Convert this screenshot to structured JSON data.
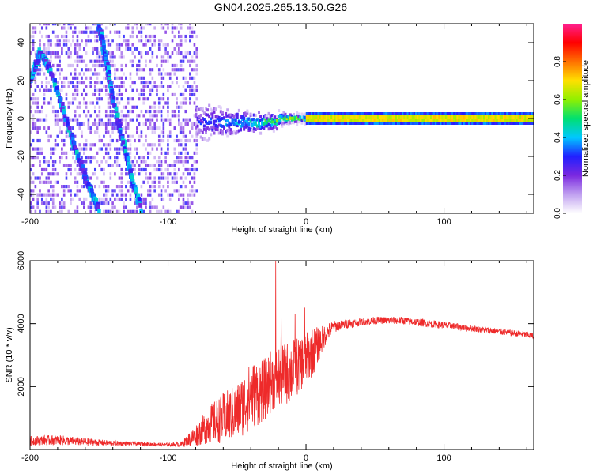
{
  "title": "GN04.2025.265.13.50.G26",
  "chart_data": [
    {
      "type": "heatmap",
      "title": "GN04.2025.265.13.50.G26",
      "xlabel": "Height of straight line (km)",
      "ylabel": "Frequency (Hz)",
      "xlim": [
        -200,
        165
      ],
      "ylim": [
        -50,
        50
      ],
      "xticks": [
        -200,
        -100,
        0,
        100
      ],
      "xtick_labels": [
        "-200",
        "-100",
        "0",
        "100"
      ],
      "yticks": [
        -40,
        -20,
        0,
        20,
        40
      ],
      "ytick_labels": [
        "-40",
        "-20",
        "0",
        "20",
        "40"
      ],
      "colorbar": {
        "label": "Normalized spectral amplitude",
        "range": [
          0,
          1
        ],
        "ticks": [
          0.0,
          0.2,
          0.4,
          0.6,
          0.8
        ],
        "tick_labels": [
          "0.0",
          "0.2",
          "0.4",
          "0.6",
          "0.8"
        ],
        "colors": [
          "#ffffff",
          "#c0a0f0",
          "#7b28e0",
          "#2020ff",
          "#00c8ff",
          "#00e070",
          "#90f000",
          "#ffe000",
          "#ff7000",
          "#ff0000",
          "#ff2090"
        ]
      },
      "features": [
        {
          "name": "main-signal-track",
          "x_range": [
            -80,
            165
          ],
          "frequency_hz": 0,
          "peak_amplitude": 0.85
        },
        {
          "name": "noise-region",
          "x_range": [
            -200,
            -80
          ],
          "mean_amplitude": 0.25
        },
        {
          "name": "diagonal-ridge",
          "points": [
            [
              -200,
              20
            ],
            [
              -193,
              35
            ],
            [
              -185,
              25
            ],
            [
              -170,
              -10
            ],
            [
              -158,
              -35
            ],
            [
              -150,
              -48
            ]
          ]
        },
        {
          "name": "diagonal-ridge-2",
          "points": [
            [
              -150,
              48
            ],
            [
              -145,
              30
            ],
            [
              -140,
              10
            ],
            [
              -130,
              -20
            ],
            [
              -120,
              -48
            ]
          ]
        }
      ]
    },
    {
      "type": "line",
      "xlabel": "Height of straight line (km)",
      "ylabel": "SNR (10 * v/v)",
      "xlim": [
        -200,
        165
      ],
      "ylim": [
        0,
        6000
      ],
      "xticks": [
        -200,
        -100,
        0,
        100
      ],
      "xtick_labels": [
        "-200",
        "-100",
        "0",
        "100"
      ],
      "yticks": [
        2000,
        4000,
        6000
      ],
      "ytick_labels": [
        "2000",
        "4000",
        "6000"
      ],
      "series": [
        {
          "name": "SNR",
          "color": "#ee2a2a",
          "x": [
            -200,
            -180,
            -160,
            -140,
            -120,
            -100,
            -90,
            -80,
            -70,
            -60,
            -50,
            -40,
            -30,
            -25,
            -20,
            -15,
            -10,
            -5,
            0,
            5,
            10,
            15,
            20,
            25,
            30,
            40,
            50,
            60,
            70,
            80,
            90,
            100,
            110,
            120,
            130,
            140,
            150,
            160,
            165
          ],
          "values": [
            280,
            300,
            240,
            200,
            180,
            150,
            170,
            450,
            800,
            1000,
            1200,
            1700,
            1900,
            2200,
            2300,
            2400,
            2500,
            2700,
            2900,
            3100,
            3400,
            3700,
            3900,
            3950,
            4000,
            4050,
            4100,
            4100,
            4100,
            4050,
            4000,
            3950,
            3900,
            3850,
            3800,
            3750,
            3700,
            3650,
            3600
          ],
          "noise_amplitude": [
            150,
            160,
            120,
            80,
            60,
            50,
            90,
            350,
            600,
            800,
            900,
            1100,
            1000,
            1000,
            1000,
            1000,
            1000,
            900,
            800,
            800,
            500,
            300,
            200,
            150,
            150,
            120,
            120,
            120,
            120,
            120,
            120,
            110,
            110,
            100,
            100,
            100,
            100,
            100,
            100
          ],
          "spikes": [
            {
              "x": -22,
              "value": 6000
            },
            {
              "x": -18,
              "value": 4200
            },
            {
              "x": -8,
              "value": 4300
            },
            {
              "x": -1,
              "value": 4500
            }
          ]
        }
      ]
    }
  ]
}
